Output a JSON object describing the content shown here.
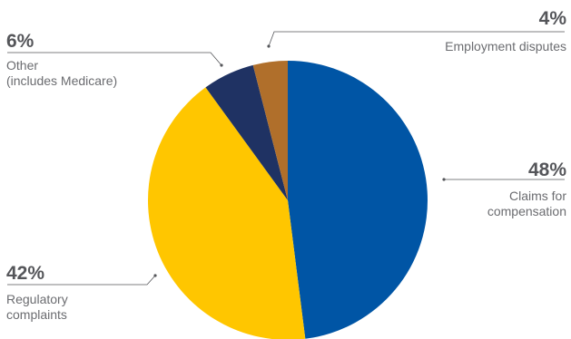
{
  "chart_data": {
    "type": "pie",
    "start_angle_deg": 0,
    "direction": "clockwise",
    "slices": [
      {
        "key": "claims",
        "label_lines": [
          "Claims for",
          "compensation"
        ],
        "value": 48,
        "value_label": "48%",
        "color": "#0055a5"
      },
      {
        "key": "regulatory",
        "label_lines": [
          "Regulatory",
          "complaints"
        ],
        "value": 42,
        "value_label": "42%",
        "color": "#ffc600"
      },
      {
        "key": "other",
        "label_lines": [
          "Other",
          "(includes Medicare)"
        ],
        "value": 6,
        "value_label": "6%",
        "color": "#1f3263"
      },
      {
        "key": "employment",
        "label_lines": [
          "Employment disputes"
        ],
        "value": 4,
        "value_label": "4%",
        "color": "#b06f2b"
      }
    ],
    "leader_color": "#55565a"
  }
}
